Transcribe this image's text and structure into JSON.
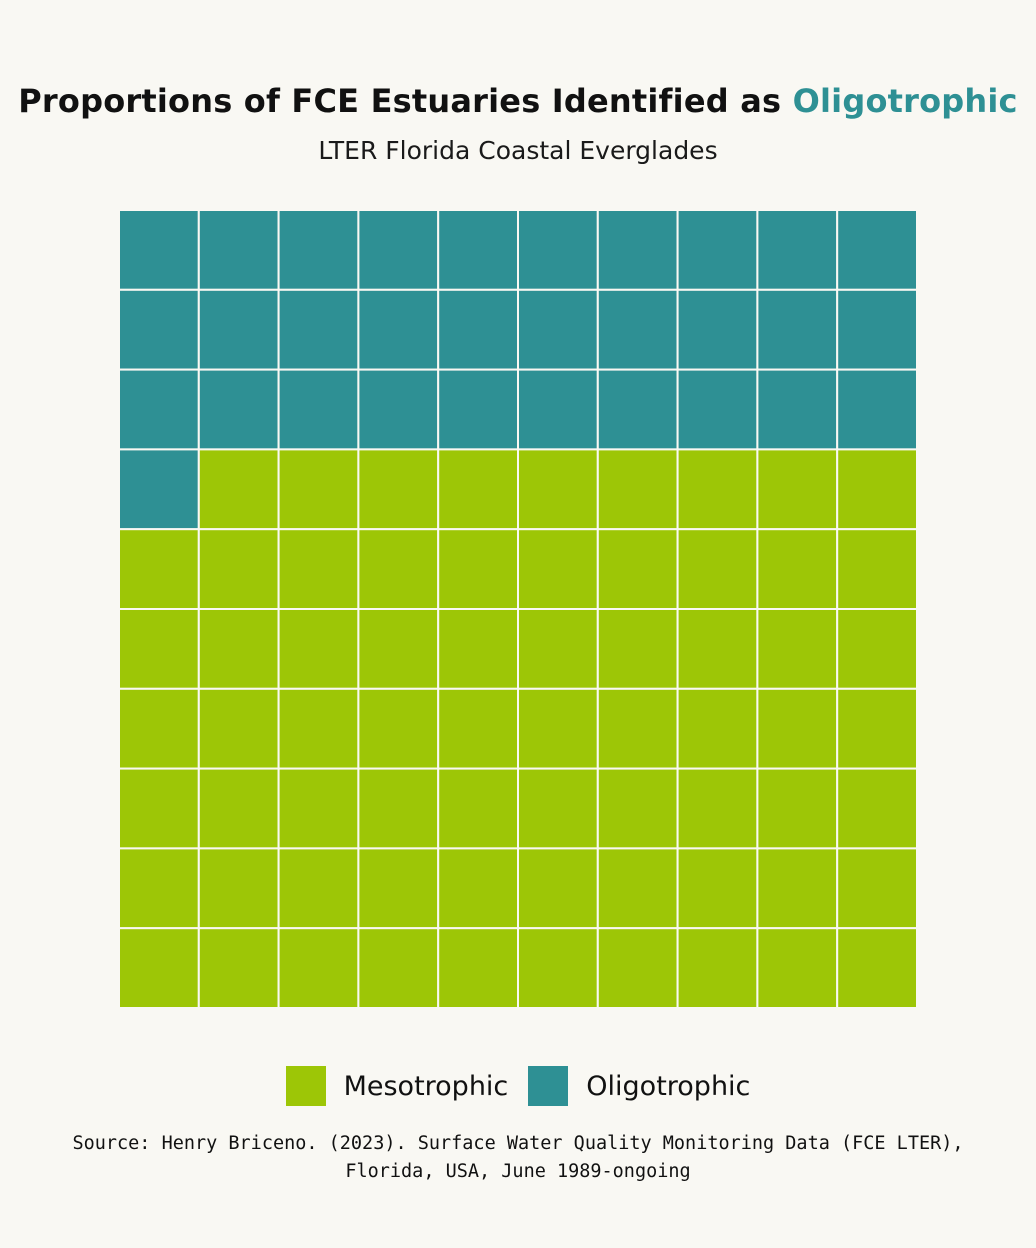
{
  "title": {
    "prefix": "Proportions of FCE Estuaries Identified as ",
    "accent": "Oligotrophic"
  },
  "subtitle": "LTER Florida Coastal Everglades",
  "colors": {
    "oligotrophic": "#2e9094",
    "mesotrophic": "#9dc606",
    "grid_line": "#f9f8f3",
    "background": "#f9f8f3"
  },
  "chart_data": {
    "type": "waffle",
    "rows": 10,
    "cols": 10,
    "fill_order": "row-major from top-left",
    "series": [
      {
        "name": "Oligotrophic",
        "count": 31,
        "color": "#2e9094"
      },
      {
        "name": "Mesotrophic",
        "count": 69,
        "color": "#9dc606"
      }
    ],
    "legend": [
      "Mesotrophic",
      "Oligotrophic"
    ],
    "legend_placement": "bottom"
  },
  "legend": {
    "mesotrophic_label": "Mesotrophic",
    "oligotrophic_label": "Oligotrophic"
  },
  "source": {
    "line1": "Source: Henry Briceno. (2023). Surface Water Quality Monitoring Data (FCE LTER),",
    "line2": "Florida, USA, June 1989-ongoing"
  }
}
